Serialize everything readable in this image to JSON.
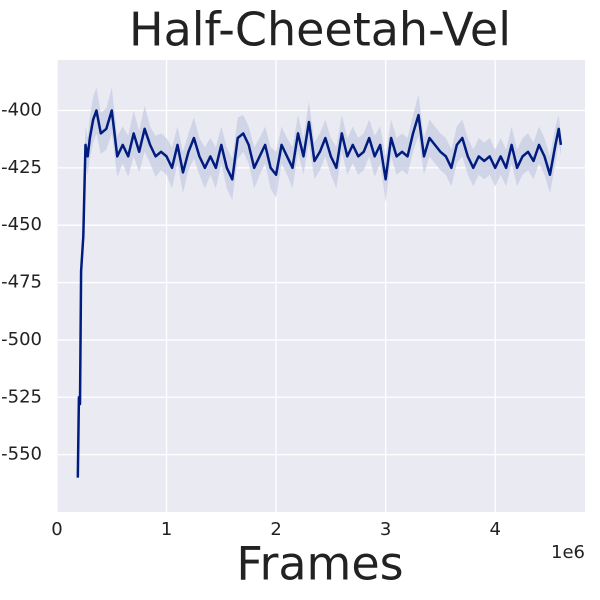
{
  "chart_data": {
    "type": "line",
    "title": "Half-Cheetah-Vel",
    "xlabel": "Frames",
    "x_offset_label": "1e6",
    "x": [
      0.19,
      0.2,
      0.21,
      0.22,
      0.24,
      0.26,
      0.28,
      0.3,
      0.33,
      0.36,
      0.4,
      0.45,
      0.5,
      0.55,
      0.6,
      0.65,
      0.7,
      0.75,
      0.8,
      0.85,
      0.9,
      0.95,
      1.0,
      1.05,
      1.1,
      1.15,
      1.2,
      1.25,
      1.3,
      1.35,
      1.4,
      1.45,
      1.5,
      1.55,
      1.6,
      1.65,
      1.7,
      1.75,
      1.8,
      1.85,
      1.9,
      1.95,
      2.0,
      2.05,
      2.1,
      2.15,
      2.2,
      2.25,
      2.3,
      2.35,
      2.4,
      2.45,
      2.5,
      2.55,
      2.6,
      2.65,
      2.7,
      2.75,
      2.8,
      2.85,
      2.9,
      2.95,
      3.0,
      3.05,
      3.1,
      3.15,
      3.2,
      3.25,
      3.3,
      3.35,
      3.4,
      3.45,
      3.5,
      3.55,
      3.6,
      3.65,
      3.7,
      3.75,
      3.8,
      3.85,
      3.9,
      3.95,
      4.0,
      4.05,
      4.1,
      4.15,
      4.2,
      4.25,
      4.3,
      4.35,
      4.4,
      4.45,
      4.5,
      4.55,
      4.58,
      4.6
    ],
    "values": [
      -560,
      -525,
      -528,
      -470,
      -455,
      -415,
      -420,
      -412,
      -404,
      -400,
      -410,
      -408,
      -400,
      -420,
      -415,
      -420,
      -410,
      -418,
      -408,
      -415,
      -420,
      -418,
      -420,
      -425,
      -415,
      -427,
      -418,
      -412,
      -420,
      -425,
      -420,
      -425,
      -415,
      -425,
      -430,
      -412,
      -410,
      -415,
      -425,
      -420,
      -415,
      -425,
      -428,
      -415,
      -420,
      -425,
      -410,
      -420,
      -405,
      -422,
      -418,
      -412,
      -420,
      -425,
      -410,
      -420,
      -415,
      -420,
      -418,
      -412,
      -420,
      -415,
      -430,
      -412,
      -420,
      -418,
      -420,
      -410,
      -402,
      -420,
      -412,
      -415,
      -418,
      -420,
      -425,
      -415,
      -412,
      -420,
      -425,
      -420,
      -422,
      -420,
      -425,
      -420,
      -425,
      -415,
      -425,
      -420,
      -418,
      -422,
      -415,
      -420,
      -428,
      -415,
      -408,
      -415
    ],
    "spread": [
      2,
      3,
      3,
      5,
      6,
      8,
      8,
      9,
      10,
      10,
      9,
      9,
      10,
      9,
      8,
      9,
      10,
      9,
      10,
      8,
      9,
      8,
      8,
      9,
      8,
      9,
      8,
      9,
      8,
      9,
      8,
      9,
      8,
      9,
      9,
      9,
      8,
      8,
      9,
      8,
      8,
      9,
      10,
      8,
      8,
      9,
      8,
      8,
      9,
      8,
      8,
      8,
      8,
      9,
      8,
      8,
      8,
      8,
      8,
      8,
      9,
      8,
      10,
      8,
      8,
      8,
      8,
      8,
      9,
      8,
      8,
      8,
      8,
      8,
      8,
      8,
      8,
      8,
      8,
      8,
      8,
      8,
      8,
      8,
      8,
      8,
      8,
      8,
      8,
      8,
      8,
      8,
      8,
      8,
      6,
      5
    ],
    "color": "#001c7f",
    "band_color": "#c5cbe3",
    "xlim": [
      0,
      4.82
    ],
    "ylim": [
      -575,
      -378
    ],
    "xticks": [
      0,
      1,
      2,
      3,
      4
    ],
    "yticks": [
      -400,
      -425,
      -450,
      -475,
      -500,
      -525,
      -550
    ],
    "grid": true
  }
}
